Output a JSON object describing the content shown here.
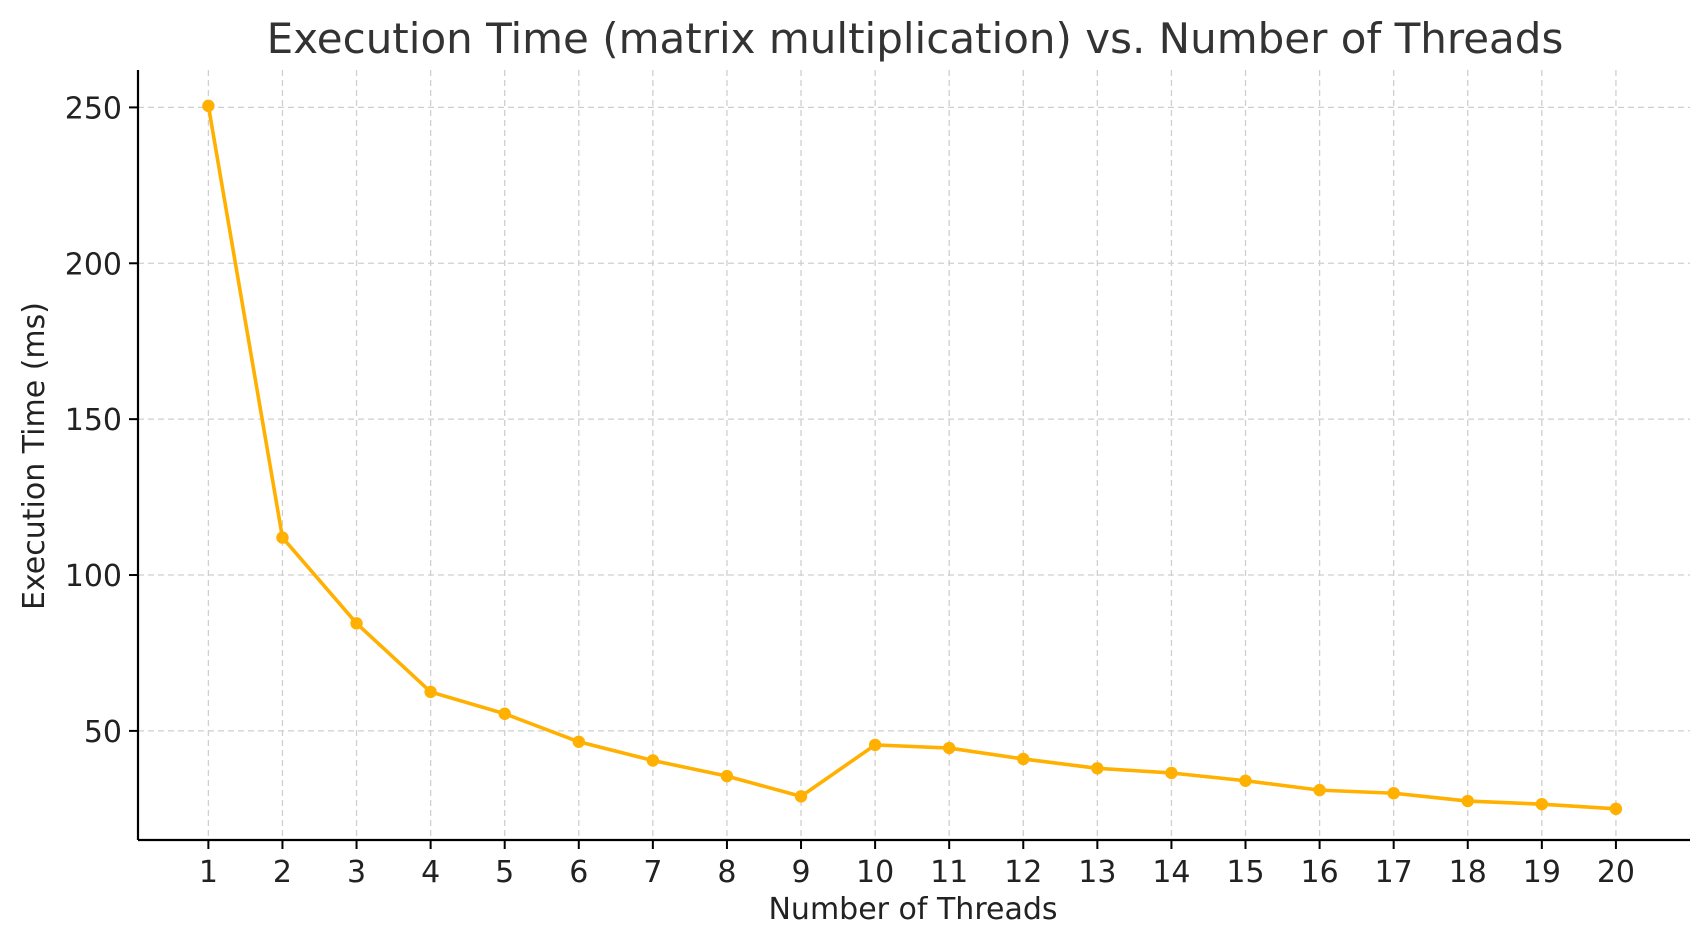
{
  "chart_data": {
    "type": "line",
    "title": "Execution Time (matrix multiplication) vs. Number of Threads",
    "xlabel": "Number of Threads",
    "ylabel": "Execution Time (ms)",
    "x": [
      1,
      2,
      3,
      4,
      5,
      6,
      7,
      8,
      9,
      10,
      11,
      12,
      13,
      14,
      15,
      16,
      17,
      18,
      19,
      20
    ],
    "x_tick_labels": [
      "1",
      "2",
      "3",
      "4",
      "5",
      "6",
      "7",
      "8",
      "9",
      "10",
      "11",
      "12",
      "13",
      "14",
      "15",
      "16",
      "17",
      "18",
      "19",
      "20"
    ],
    "y_ticks": [
      50,
      100,
      150,
      200,
      250
    ],
    "y_tick_labels": [
      "50",
      "100",
      "150",
      "200",
      "250"
    ],
    "xlim": [
      0.05,
      21.0
    ],
    "ylim": [
      15,
      262
    ],
    "grid": true,
    "legend": "none",
    "series": [
      {
        "color": "#FFB000",
        "values": [
          250.5,
          112,
          84.5,
          62.5,
          55.5,
          46.5,
          40.5,
          35.5,
          29,
          45.5,
          44.5,
          41,
          38,
          36.5,
          34,
          31,
          30,
          27.5,
          26.5,
          25
        ]
      }
    ]
  }
}
